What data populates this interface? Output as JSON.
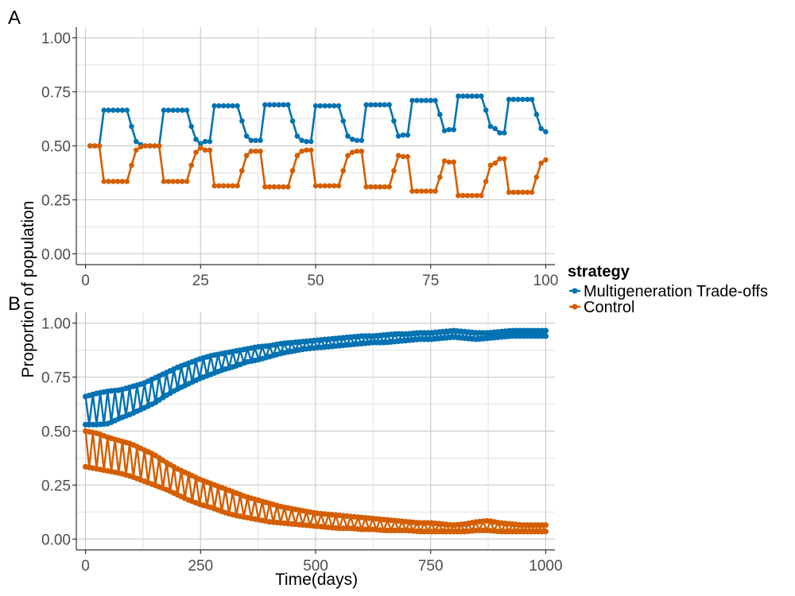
{
  "legend": {
    "title": "strategy",
    "entries": [
      {
        "label": "Multigeneration Trade-offs",
        "color": "#0072B2"
      },
      {
        "label": "Control",
        "color": "#D55E00"
      }
    ]
  },
  "ylabel": "Proportion of population",
  "chart_data": [
    {
      "type": "line",
      "panel": "A",
      "xlabel": "",
      "ylabel": "Proportion of population",
      "xlim": [
        -2,
        102
      ],
      "ylim": [
        -0.05,
        1.05
      ],
      "xticks": [
        0,
        25,
        50,
        75,
        100
      ],
      "xtick_labels": [
        "0",
        "25",
        "50",
        "75",
        "100"
      ],
      "yticks": [
        0,
        0.25,
        0.5,
        0.75,
        1.0
      ],
      "ytick_labels": [
        "0.00",
        "0.25",
        "0.50",
        "0.75",
        "1.00"
      ],
      "grid": true,
      "series": [
        {
          "name": "Multigeneration Trade-offs",
          "color": "#0072B2",
          "x": [
            1,
            2,
            3,
            4,
            5,
            6,
            7,
            8,
            9,
            10,
            11,
            12,
            13,
            14,
            15,
            16,
            17,
            18,
            19,
            20,
            21,
            22,
            23,
            24,
            25,
            26,
            27,
            28,
            29,
            30,
            31,
            32,
            33,
            34,
            35,
            36,
            37,
            38,
            39,
            40,
            41,
            42,
            43,
            44,
            45,
            46,
            47,
            48,
            49,
            50,
            51,
            52,
            53,
            54,
            55,
            56,
            57,
            58,
            59,
            60,
            61,
            62,
            63,
            64,
            65,
            66,
            67,
            68,
            69,
            70,
            71,
            72,
            73,
            74,
            75,
            76,
            77,
            78,
            79,
            80,
            81,
            82,
            83,
            84,
            85,
            86,
            87,
            88,
            89,
            90,
            91,
            92,
            93,
            94,
            95,
            96,
            97,
            98,
            99,
            100
          ],
          "y": [
            0.5,
            0.5,
            0.5,
            0.665,
            0.665,
            0.665,
            0.665,
            0.665,
            0.665,
            0.59,
            0.52,
            0.505,
            0.5,
            0.5,
            0.5,
            0.5,
            0.665,
            0.665,
            0.665,
            0.665,
            0.665,
            0.665,
            0.59,
            0.53,
            0.51,
            0.52,
            0.52,
            0.685,
            0.685,
            0.685,
            0.685,
            0.685,
            0.685,
            0.615,
            0.545,
            0.525,
            0.525,
            0.525,
            0.69,
            0.69,
            0.69,
            0.69,
            0.69,
            0.69,
            0.615,
            0.545,
            0.525,
            0.52,
            0.52,
            0.685,
            0.685,
            0.685,
            0.685,
            0.685,
            0.685,
            0.615,
            0.545,
            0.53,
            0.525,
            0.525,
            0.69,
            0.69,
            0.69,
            0.69,
            0.69,
            0.69,
            0.615,
            0.545,
            0.55,
            0.55,
            0.71,
            0.71,
            0.71,
            0.71,
            0.71,
            0.71,
            0.645,
            0.57,
            0.575,
            0.575,
            0.73,
            0.73,
            0.73,
            0.73,
            0.73,
            0.73,
            0.665,
            0.59,
            0.58,
            0.56,
            0.56,
            0.715,
            0.715,
            0.715,
            0.715,
            0.715,
            0.715,
            0.645,
            0.58,
            0.565
          ]
        },
        {
          "name": "Control",
          "color": "#D55E00",
          "x": [
            1,
            2,
            3,
            4,
            5,
            6,
            7,
            8,
            9,
            10,
            11,
            12,
            13,
            14,
            15,
            16,
            17,
            18,
            19,
            20,
            21,
            22,
            23,
            24,
            25,
            26,
            27,
            28,
            29,
            30,
            31,
            32,
            33,
            34,
            35,
            36,
            37,
            38,
            39,
            40,
            41,
            42,
            43,
            44,
            45,
            46,
            47,
            48,
            49,
            50,
            51,
            52,
            53,
            54,
            55,
            56,
            57,
            58,
            59,
            60,
            61,
            62,
            63,
            64,
            65,
            66,
            67,
            68,
            69,
            70,
            71,
            72,
            73,
            74,
            75,
            76,
            77,
            78,
            79,
            80,
            81,
            82,
            83,
            84,
            85,
            86,
            87,
            88,
            89,
            90,
            91,
            92,
            93,
            94,
            95,
            96,
            97,
            98,
            99,
            100
          ],
          "y": [
            0.5,
            0.5,
            0.5,
            0.335,
            0.335,
            0.335,
            0.335,
            0.335,
            0.335,
            0.41,
            0.48,
            0.495,
            0.5,
            0.5,
            0.5,
            0.5,
            0.335,
            0.335,
            0.335,
            0.335,
            0.335,
            0.335,
            0.41,
            0.47,
            0.49,
            0.48,
            0.48,
            0.315,
            0.315,
            0.315,
            0.315,
            0.315,
            0.315,
            0.385,
            0.455,
            0.475,
            0.475,
            0.475,
            0.31,
            0.31,
            0.31,
            0.31,
            0.31,
            0.31,
            0.385,
            0.455,
            0.475,
            0.48,
            0.48,
            0.315,
            0.315,
            0.315,
            0.315,
            0.315,
            0.315,
            0.385,
            0.455,
            0.47,
            0.475,
            0.475,
            0.31,
            0.31,
            0.31,
            0.31,
            0.31,
            0.31,
            0.385,
            0.455,
            0.45,
            0.45,
            0.29,
            0.29,
            0.29,
            0.29,
            0.29,
            0.29,
            0.355,
            0.43,
            0.425,
            0.425,
            0.27,
            0.27,
            0.27,
            0.27,
            0.27,
            0.27,
            0.335,
            0.41,
            0.42,
            0.44,
            0.44,
            0.285,
            0.285,
            0.285,
            0.285,
            0.285,
            0.285,
            0.355,
            0.42,
            0.435
          ]
        }
      ]
    },
    {
      "type": "line",
      "panel": "B",
      "xlabel": "Time(days)",
      "ylabel": "Proportion of population",
      "xlim": [
        -20,
        1020
      ],
      "ylim": [
        -0.05,
        1.05
      ],
      "xticks": [
        0,
        250,
        500,
        750,
        1000
      ],
      "xtick_labels": [
        "0",
        "250",
        "500",
        "750",
        "1000"
      ],
      "yticks": [
        0,
        0.25,
        0.5,
        0.75,
        1.0
      ],
      "ytick_labels": [
        "0.00",
        "0.25",
        "0.50",
        "0.75",
        "1.00"
      ],
      "grid": true,
      "series": [
        {
          "name": "Multigeneration Trade-offs",
          "color": "#0072B2",
          "x": [
            0,
            25,
            50,
            75,
            100,
            125,
            150,
            175,
            200,
            225,
            250,
            275,
            300,
            325,
            350,
            375,
            400,
            425,
            450,
            475,
            500,
            525,
            550,
            575,
            600,
            625,
            650,
            675,
            700,
            725,
            750,
            775,
            800,
            825,
            850,
            875,
            900,
            925,
            950,
            975,
            1000
          ],
          "upper": [
            0.66,
            0.675,
            0.685,
            0.69,
            0.705,
            0.72,
            0.745,
            0.77,
            0.795,
            0.815,
            0.835,
            0.85,
            0.86,
            0.87,
            0.88,
            0.89,
            0.895,
            0.905,
            0.91,
            0.915,
            0.92,
            0.925,
            0.93,
            0.935,
            0.94,
            0.94,
            0.945,
            0.95,
            0.95,
            0.955,
            0.955,
            0.96,
            0.965,
            0.96,
            0.955,
            0.955,
            0.96,
            0.965,
            0.965,
            0.965,
            0.965
          ],
          "lower": [
            0.53,
            0.53,
            0.535,
            0.56,
            0.58,
            0.605,
            0.63,
            0.665,
            0.695,
            0.72,
            0.745,
            0.765,
            0.785,
            0.8,
            0.82,
            0.83,
            0.845,
            0.86,
            0.87,
            0.88,
            0.885,
            0.89,
            0.895,
            0.9,
            0.905,
            0.91,
            0.91,
            0.915,
            0.92,
            0.925,
            0.925,
            0.93,
            0.935,
            0.93,
            0.925,
            0.93,
            0.935,
            0.94,
            0.94,
            0.94,
            0.94
          ]
        },
        {
          "name": "Control",
          "color": "#D55E00",
          "x": [
            0,
            25,
            50,
            75,
            100,
            125,
            150,
            175,
            200,
            225,
            250,
            275,
            300,
            325,
            350,
            375,
            400,
            425,
            450,
            475,
            500,
            525,
            550,
            575,
            600,
            625,
            650,
            675,
            700,
            725,
            750,
            775,
            800,
            825,
            850,
            875,
            900,
            925,
            950,
            975,
            1000
          ],
          "upper": [
            0.5,
            0.49,
            0.47,
            0.455,
            0.44,
            0.415,
            0.39,
            0.355,
            0.325,
            0.3,
            0.275,
            0.255,
            0.235,
            0.215,
            0.195,
            0.18,
            0.165,
            0.15,
            0.14,
            0.13,
            0.12,
            0.115,
            0.11,
            0.105,
            0.1,
            0.095,
            0.09,
            0.085,
            0.08,
            0.075,
            0.075,
            0.07,
            0.065,
            0.07,
            0.08,
            0.085,
            0.075,
            0.07,
            0.065,
            0.065,
            0.065
          ],
          "lower": [
            0.335,
            0.325,
            0.315,
            0.305,
            0.29,
            0.27,
            0.25,
            0.23,
            0.205,
            0.18,
            0.16,
            0.145,
            0.125,
            0.11,
            0.1,
            0.09,
            0.08,
            0.075,
            0.07,
            0.065,
            0.06,
            0.055,
            0.05,
            0.05,
            0.045,
            0.045,
            0.04,
            0.04,
            0.04,
            0.035,
            0.035,
            0.035,
            0.035,
            0.035,
            0.04,
            0.04,
            0.035,
            0.035,
            0.035,
            0.035,
            0.035
          ]
        }
      ]
    }
  ]
}
